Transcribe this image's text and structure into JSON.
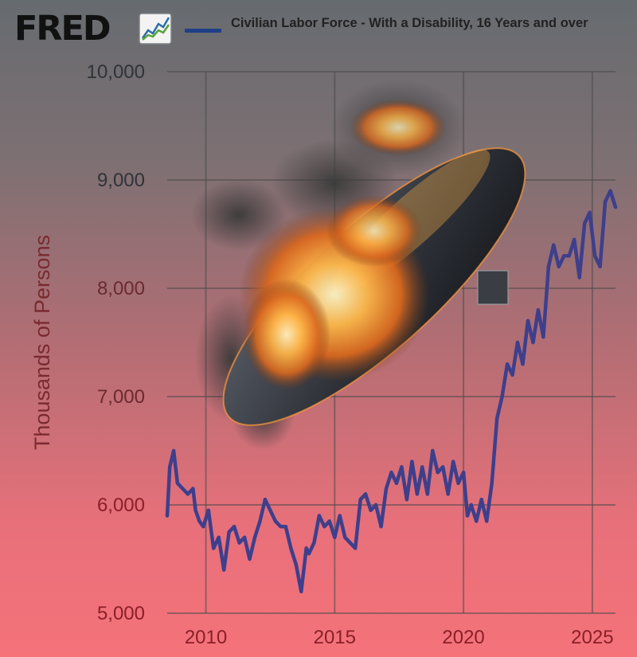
{
  "header": {
    "logo": "FRED",
    "logo_icon": "line-chart-icon",
    "legend_label": "Civilian Labor Force - With a Disability, 16 Years and over",
    "legend_color": "#1f3f87"
  },
  "chart_data": {
    "type": "line",
    "title": "",
    "xlabel": "",
    "ylabel": "Thousands of Persons",
    "xlim": [
      2008.5,
      2025.9
    ],
    "ylim": [
      5000,
      10000
    ],
    "x_ticks": [
      2010,
      2015,
      2020,
      2025
    ],
    "x_tick_labels": [
      "2010",
      "2015",
      "2020",
      "2025"
    ],
    "y_ticks": [
      5000,
      6000,
      7000,
      8000,
      9000,
      10000
    ],
    "y_tick_labels": [
      "5,000",
      "6,000",
      "7,000",
      "8,000",
      "9,000",
      "10,000"
    ],
    "grid": true,
    "legend_position": "top",
    "line_color": "#3e3f8c",
    "series": [
      {
        "name": "Civilian Labor Force - With a Disability, 16 Years and over",
        "x": [
          2008.5,
          2008.6,
          2008.75,
          2008.9,
          2009.1,
          2009.3,
          2009.5,
          2009.6,
          2009.75,
          2009.9,
          2010.1,
          2010.3,
          2010.5,
          2010.7,
          2010.9,
          2011.1,
          2011.3,
          2011.5,
          2011.7,
          2011.9,
          2012.1,
          2012.3,
          2012.5,
          2012.7,
          2012.9,
          2013.1,
          2013.3,
          2013.5,
          2013.7,
          2013.9,
          2014.0,
          2014.2,
          2014.4,
          2014.6,
          2014.8,
          2015.0,
          2015.2,
          2015.4,
          2015.6,
          2015.8,
          2016.0,
          2016.2,
          2016.4,
          2016.6,
          2016.8,
          2017.0,
          2017.2,
          2017.4,
          2017.6,
          2017.8,
          2018.0,
          2018.2,
          2018.4,
          2018.6,
          2018.8,
          2019.0,
          2019.2,
          2019.4,
          2019.6,
          2019.8,
          2020.0,
          2020.15,
          2020.3,
          2020.5,
          2020.7,
          2020.9,
          2021.1,
          2021.3,
          2021.5,
          2021.7,
          2021.9,
          2022.1,
          2022.3,
          2022.5,
          2022.7,
          2022.9,
          2023.1,
          2023.3,
          2023.5,
          2023.7,
          2023.9,
          2024.1,
          2024.3,
          2024.5,
          2024.7,
          2024.9,
          2025.1,
          2025.3,
          2025.5,
          2025.7,
          2025.9
        ],
        "values": [
          5900,
          6350,
          6500,
          6200,
          6150,
          6100,
          6150,
          5950,
          5850,
          5800,
          5950,
          5600,
          5700,
          5400,
          5750,
          5800,
          5650,
          5700,
          5500,
          5700,
          5850,
          6050,
          5950,
          5850,
          5800,
          5800,
          5600,
          5450,
          5200,
          5600,
          5550,
          5650,
          5900,
          5800,
          5850,
          5700,
          5900,
          5700,
          5650,
          5600,
          6050,
          6100,
          5950,
          6000,
          5800,
          6150,
          6300,
          6200,
          6350,
          6050,
          6400,
          6100,
          6350,
          6100,
          6500,
          6300,
          6350,
          6100,
          6400,
          6200,
          6300,
          5900,
          6000,
          5850,
          6050,
          5850,
          6200,
          6800,
          7000,
          7300,
          7200,
          7500,
          7300,
          7700,
          7500,
          7800,
          7550,
          8200,
          8400,
          8200,
          8300,
          8300,
          8450,
          8100,
          8600,
          8700,
          8300,
          8200,
          8800,
          8900,
          8750
        ]
      }
    ]
  }
}
